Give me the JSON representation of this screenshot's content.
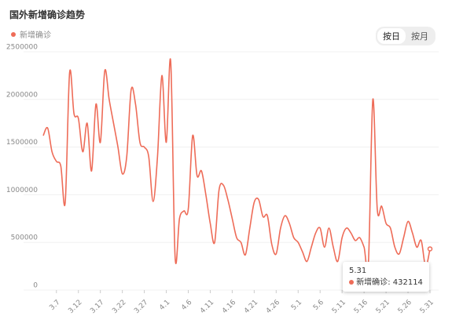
{
  "chart_data": {
    "type": "line",
    "title": "国外新增确诊趋势",
    "buttons": [
      "按日",
      "按月"
    ],
    "categories": [
      null,
      null,
      null,
      "3.7",
      null,
      null,
      null,
      null,
      "3.12",
      null,
      null,
      null,
      null,
      "3.17",
      null,
      null,
      null,
      null,
      "3.22",
      null,
      null,
      null,
      null,
      "3.27",
      null,
      null,
      null,
      null,
      "4.1",
      null,
      null,
      null,
      null,
      "4.6",
      null,
      null,
      null,
      null,
      "4.11",
      null,
      null,
      null,
      null,
      "4.16",
      null,
      null,
      null,
      null,
      "4.21",
      null,
      null,
      null,
      null,
      "4.26",
      null,
      null,
      null,
      null,
      "5.1",
      null,
      null,
      null,
      null,
      "5.6",
      null,
      null,
      null,
      null,
      "5.11",
      null,
      null,
      null,
      null,
      "5.16",
      null,
      null,
      null,
      null,
      "5.21",
      null,
      null,
      null,
      null,
      "5.26",
      null,
      null,
      null,
      null,
      "5.31"
    ],
    "series": [
      {
        "name": "新增确诊",
        "color": "#ee6c58",
        "values": [
          1620000,
          1700000,
          1450000,
          1350000,
          1300000,
          920000,
          2280000,
          1850000,
          1800000,
          1450000,
          1750000,
          1250000,
          1950000,
          1550000,
          2300000,
          2000000,
          1750000,
          1500000,
          1220000,
          1400000,
          2100000,
          1950000,
          1550000,
          1500000,
          1400000,
          930000,
          1400000,
          2250000,
          1550000,
          2400000,
          350000,
          750000,
          830000,
          850000,
          1620000,
          1200000,
          1250000,
          1000000,
          700000,
          500000,
          1050000,
          1100000,
          950000,
          750000,
          550000,
          500000,
          370000,
          650000,
          920000,
          950000,
          770000,
          780000,
          480000,
          380000,
          650000,
          780000,
          700000,
          550000,
          500000,
          400000,
          300000,
          450000,
          600000,
          650000,
          450000,
          650000,
          450000,
          300000,
          550000,
          650000,
          600000,
          520000,
          550000,
          450000,
          300000,
          2000000,
          850000,
          880000,
          700000,
          650000,
          450000,
          380000,
          550000,
          720000,
          600000,
          450000,
          520000,
          250000,
          432114
        ]
      }
    ],
    "ylim": [
      0,
      2500000
    ],
    "yticks": [
      0,
      500000,
      1000000,
      1500000,
      2000000,
      2500000
    ],
    "grid": true,
    "tooltip_index": 88
  }
}
